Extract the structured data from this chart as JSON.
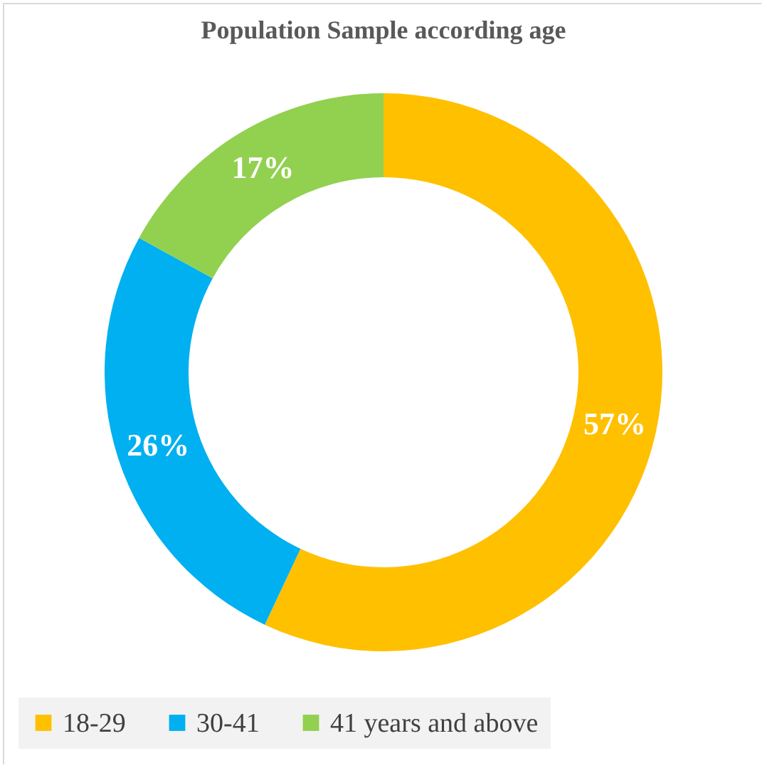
{
  "chart_data": {
    "type": "donut",
    "title": "Population Sample according age",
    "categories": [
      "18-29",
      "30-41",
      "41 years and above"
    ],
    "values": [
      57,
      26,
      17
    ],
    "colors": [
      "#ffc000",
      "#00b0f0",
      "#92d050"
    ],
    "value_labels": [
      "57%",
      "26%",
      "17%"
    ],
    "legend": "bottom"
  }
}
